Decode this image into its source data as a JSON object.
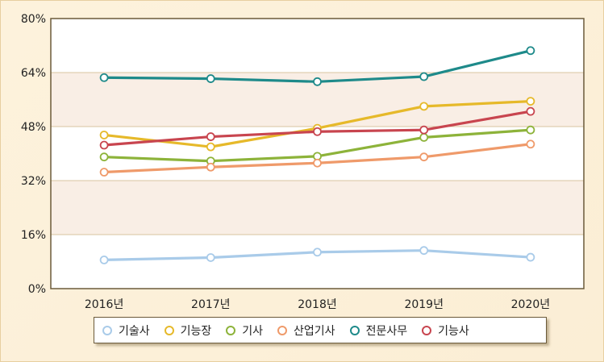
{
  "chart_data": {
    "type": "line",
    "categories": [
      "2016년",
      "2017년",
      "2018년",
      "2019년",
      "2020년"
    ],
    "ylim": [
      0,
      80
    ],
    "yticks": [
      "0%",
      "16%",
      "32%",
      "48%",
      "64%",
      "80%"
    ],
    "ytick_values": [
      0,
      16,
      32,
      48,
      64,
      80
    ],
    "grid": true,
    "legend_position": "bottom",
    "series": [
      {
        "name": "기술사",
        "color": "#a9cbe9",
        "values": [
          8.5,
          9.2,
          10.8,
          11.3,
          9.3
        ]
      },
      {
        "name": "기능장",
        "color": "#e6b92a",
        "values": [
          45.5,
          42.0,
          47.5,
          54.0,
          55.5
        ]
      },
      {
        "name": "기사",
        "color": "#8db33a",
        "values": [
          39.0,
          37.8,
          39.2,
          44.8,
          47.0
        ]
      },
      {
        "name": "산업기사",
        "color": "#ef9a6a",
        "values": [
          34.5,
          36.0,
          37.2,
          39.0,
          42.8
        ]
      },
      {
        "name": "전문사무",
        "color": "#1e8a8a",
        "values": [
          62.5,
          62.2,
          61.3,
          62.8,
          70.5
        ]
      },
      {
        "name": "기능사",
        "color": "#c8454f",
        "values": [
          42.5,
          45.0,
          46.5,
          47.0,
          52.5
        ]
      }
    ]
  }
}
